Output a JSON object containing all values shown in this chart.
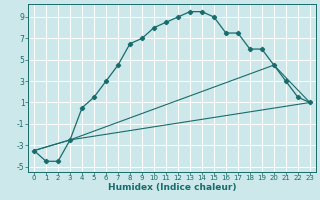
{
  "xlabel": "Humidex (Indice chaleur)",
  "bg_color": "#cce8ea",
  "grid_color": "#ffffff",
  "line_color": "#1a6b6b",
  "xlim": [
    -0.5,
    23.5
  ],
  "ylim": [
    -5.5,
    10.2
  ],
  "yticks": [
    -5,
    -3,
    -1,
    1,
    3,
    5,
    7,
    9
  ],
  "xticks": [
    0,
    1,
    2,
    3,
    4,
    5,
    6,
    7,
    8,
    9,
    10,
    11,
    12,
    13,
    14,
    15,
    16,
    17,
    18,
    19,
    20,
    21,
    22,
    23
  ],
  "curve1_x": [
    0,
    1,
    2,
    3,
    4,
    5,
    6,
    7,
    8,
    9,
    10,
    11,
    12,
    13,
    14,
    15,
    16,
    17,
    18,
    19,
    20,
    21,
    22,
    23
  ],
  "curve1_y": [
    -3.5,
    -4.5,
    -4.5,
    -2.5,
    0.5,
    1.5,
    3.0,
    4.5,
    6.5,
    7.0,
    8.0,
    8.5,
    9.0,
    9.5,
    9.5,
    9.0,
    7.5,
    7.5,
    6.0,
    6.0,
    4.5,
    3.0,
    1.5,
    1.0
  ],
  "curve2_x": [
    0,
    3,
    20,
    23
  ],
  "curve2_y": [
    -3.5,
    -2.5,
    4.5,
    1.0
  ],
  "curve3_x": [
    0,
    3,
    23
  ],
  "curve3_y": [
    -3.5,
    -2.5,
    1.0
  ],
  "xlabel_fontsize": 6.5,
  "tick_fontsize": 5.0,
  "ytick_fontsize": 5.5
}
